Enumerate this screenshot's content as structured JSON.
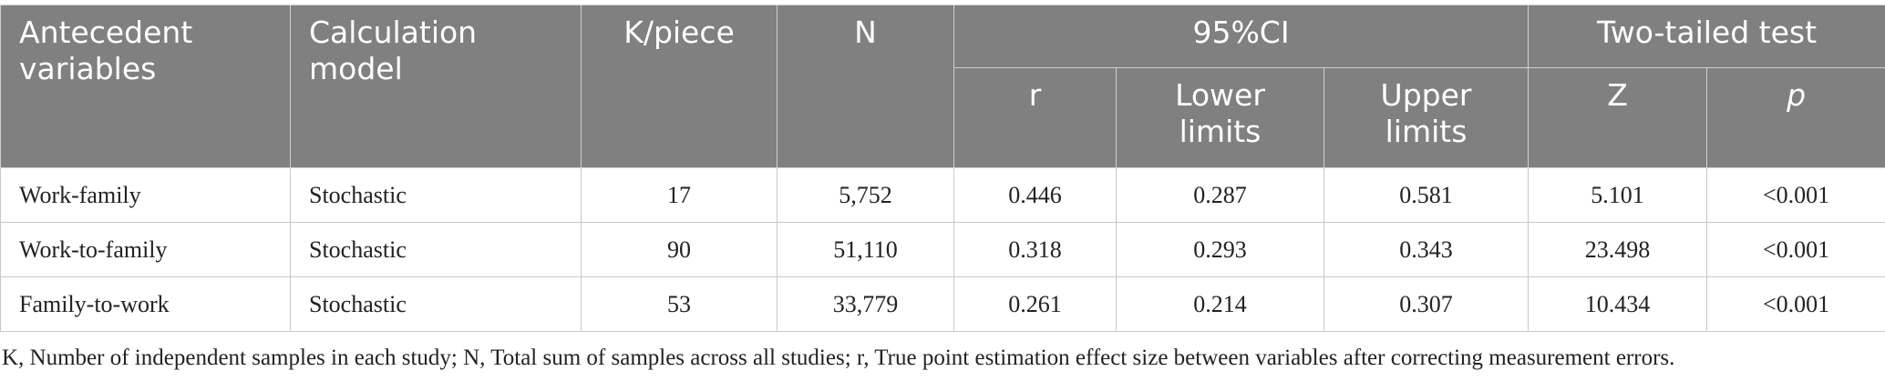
{
  "table": {
    "header_top": [
      "Antecedent variables",
      "Calculation model",
      "K/piece",
      "N",
      "95%CI",
      "Two-tailed test"
    ],
    "header_sub": [
      "r",
      "Lower limits",
      "Upper limits",
      "Z",
      "p"
    ],
    "rows": [
      [
        "Work-family",
        "Stochastic",
        "17",
        "5,752",
        "0.446",
        "0.287",
        "0.581",
        "5.101",
        "<0.001"
      ],
      [
        "Work-to-family",
        "Stochastic",
        "90",
        "51,110",
        "0.318",
        "0.293",
        "0.343",
        "23.498",
        "<0.001"
      ],
      [
        "Family-to-work",
        "Stochastic",
        "53",
        "33,779",
        "0.261",
        "0.214",
        "0.307",
        "10.434",
        "<0.001"
      ]
    ],
    "footnote": "K, Number of independent samples in each study; N, Total sum of samples across all studies; r, True point estimation effect size between variables after correcting measurement errors."
  }
}
